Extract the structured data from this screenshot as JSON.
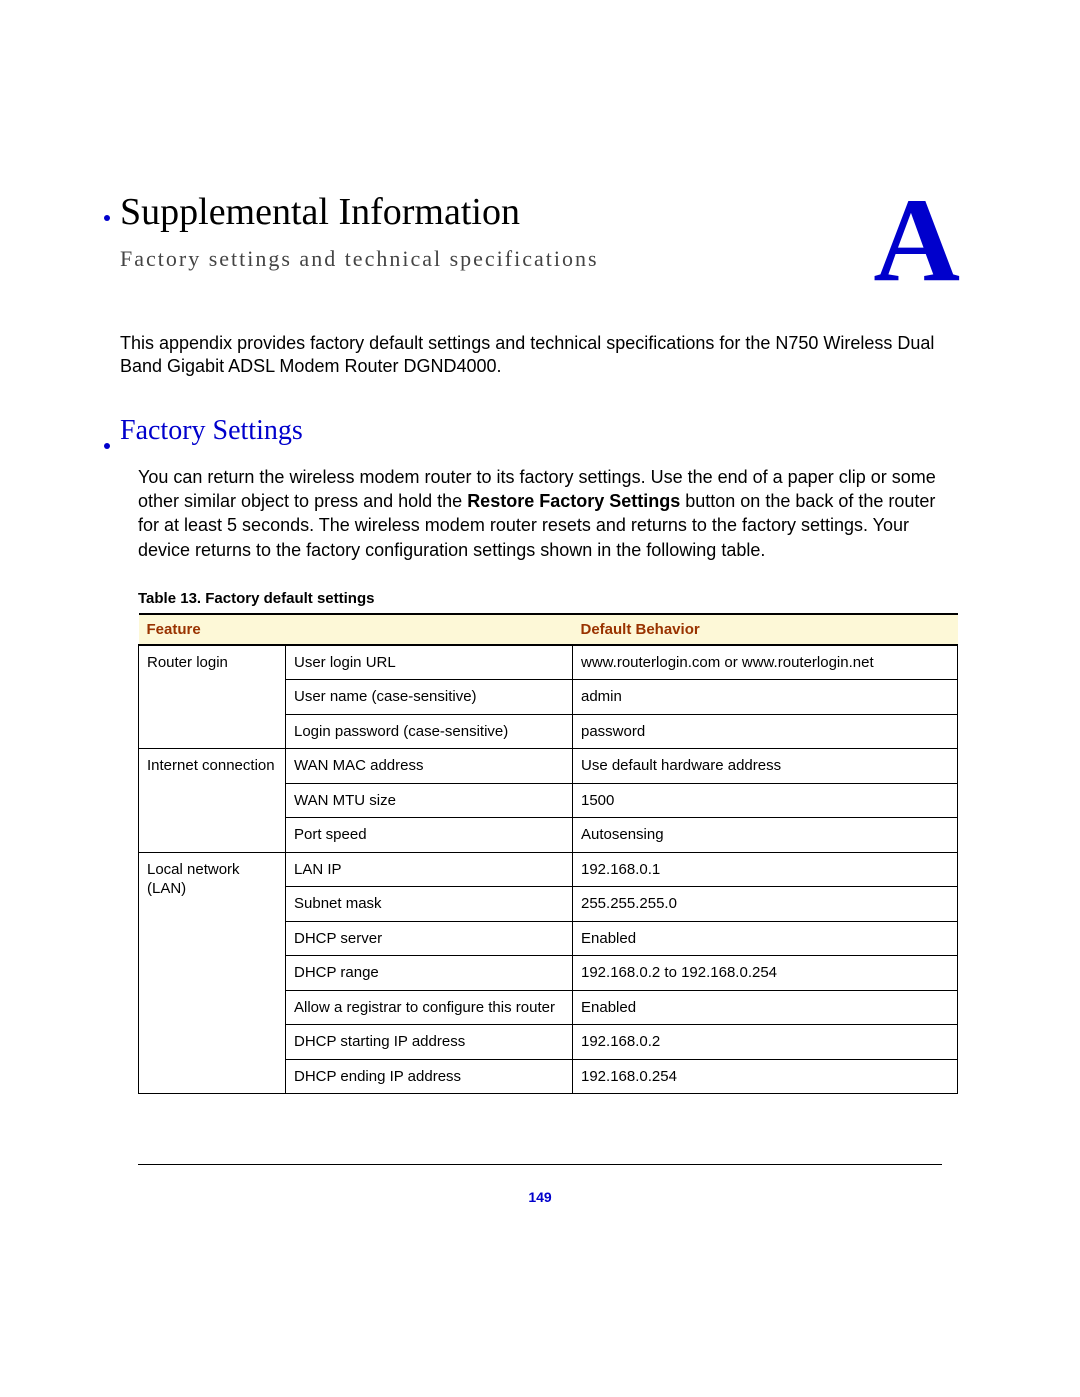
{
  "appendix_letter": "A",
  "main_title": "Supplemental Information",
  "subtitle": "Factory settings and technical specifications",
  "intro_text": "This appendix provides factory default settings and technical specifications for the N750 Wireless Dual Band Gigabit ADSL Modem Router DGND4000.",
  "section_heading": "Factory Settings",
  "body_part1": "You can return the wireless modem router to its factory settings. Use the end of a paper clip or some other similar object to press and hold the ",
  "body_bold": "Restore Factory Settings",
  "body_part2": " button on the back of the router for at least 5 seconds. The wireless modem router resets and returns to the factory settings. Your device returns to the factory configuration settings shown in the following table.",
  "table_caption": "Table 13.  Factory default settings",
  "col_feature": "Feature",
  "col_default": "Default Behavior",
  "groups": [
    {
      "label": "Router login",
      "rows": [
        {
          "sub": "User login URL",
          "val": "www.routerlogin.com or www.routerlogin.net"
        },
        {
          "sub": "User name (case-sensitive)",
          "val": "admin"
        },
        {
          "sub": "Login password (case-sensitive)",
          "val": "password"
        }
      ]
    },
    {
      "label": "Internet connection",
      "rows": [
        {
          "sub": "WAN MAC address",
          "val": "Use default hardware address"
        },
        {
          "sub": "WAN MTU size",
          "val": "1500"
        },
        {
          "sub": "Port speed",
          "val": "Autosensing"
        }
      ]
    },
    {
      "label": "Local network (LAN)",
      "rows": [
        {
          "sub": "LAN IP",
          "val": "192.168.0.1"
        },
        {
          "sub": "Subnet mask",
          "val": "255.255.255.0"
        },
        {
          "sub": "DHCP server",
          "val": "Enabled"
        },
        {
          "sub": "DHCP range",
          "val": "192.168.0.2 to 192.168.0.254"
        },
        {
          "sub": "Allow a registrar to configure this router",
          "val": "Enabled"
        },
        {
          "sub": "DHCP starting IP address",
          "val": "192.168.0.2"
        },
        {
          "sub": "DHCP ending IP address",
          "val": "192.168.0.254"
        }
      ]
    }
  ],
  "page_number": "149",
  "colors": {
    "accent": "#0000cc",
    "header_bg": "#fdf8d7",
    "header_text": "#993300",
    "border": "#000000",
    "page_bg": "#ffffff"
  }
}
